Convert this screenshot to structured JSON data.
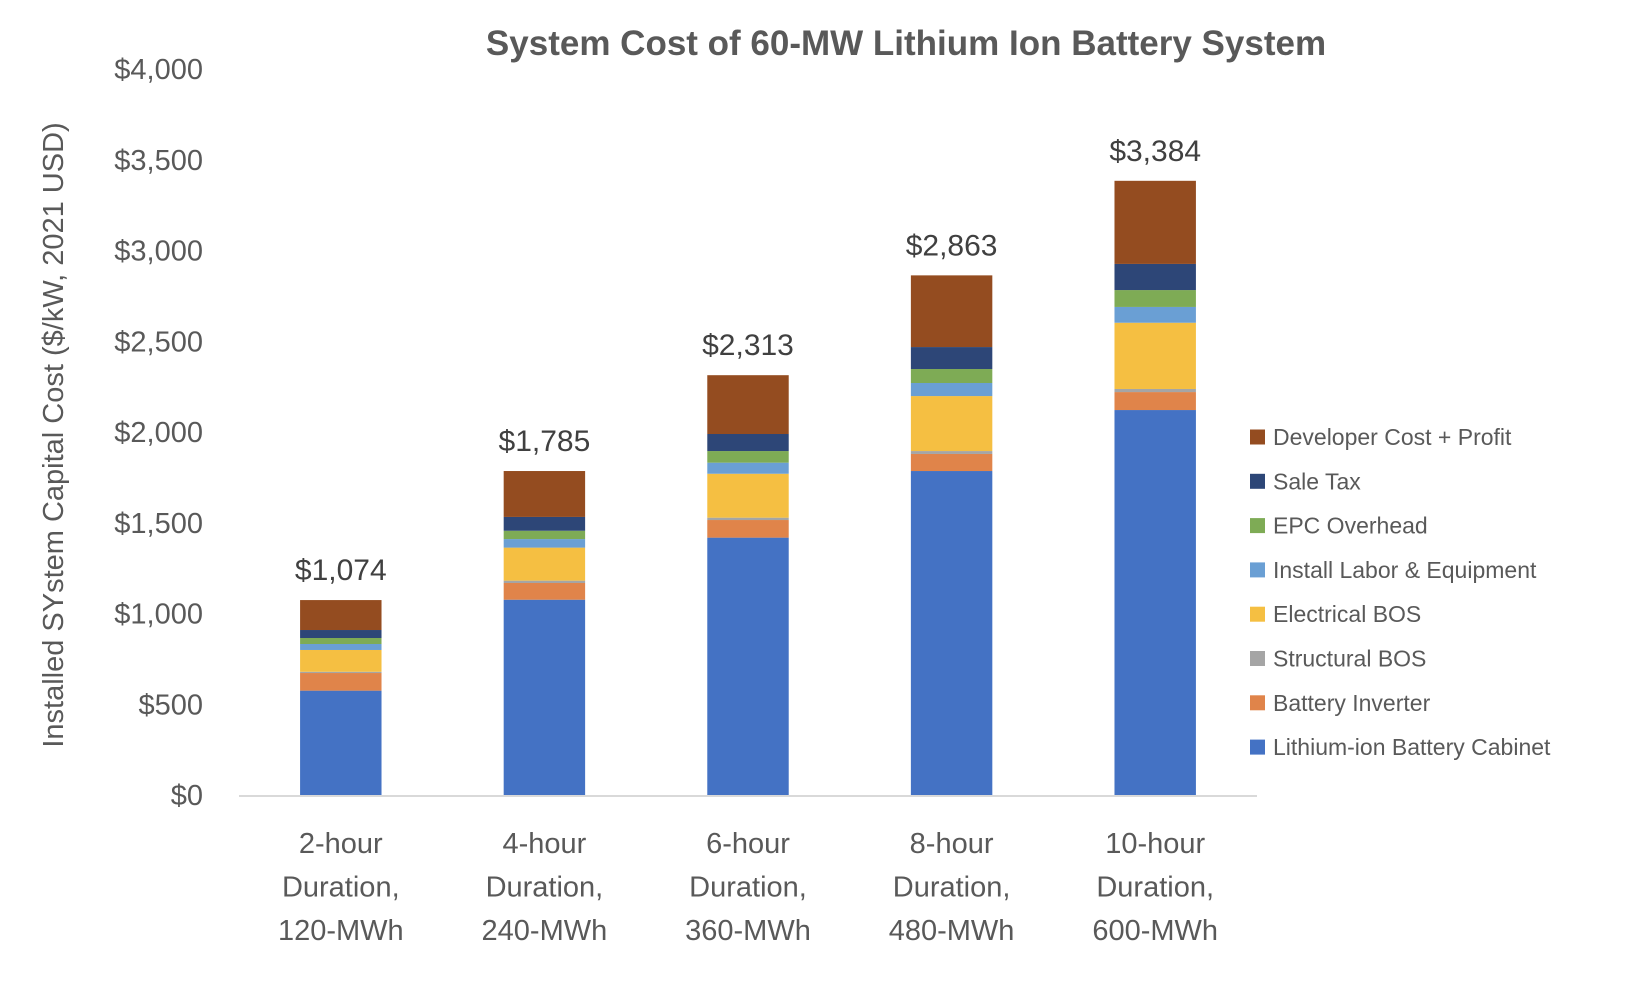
{
  "chart_data": {
    "type": "bar",
    "stacked": true,
    "title": "System Cost of 60-MW Lithium Ion Battery System",
    "xlabel": "",
    "ylabel": "Installed SYstem Capital Cost ($/kW, 2021 USD)",
    "ylim": [
      0,
      4000
    ],
    "yticks": [
      0,
      500,
      1000,
      1500,
      2000,
      2500,
      3000,
      3500,
      4000
    ],
    "ytick_labels": [
      "$0",
      "$500",
      "$1,000",
      "$1,500",
      "$2,000",
      "$2,500",
      "$3,000",
      "$3,500",
      "$4,000"
    ],
    "grid": false,
    "legend_position": "right",
    "categories": [
      [
        "2-hour",
        "Duration,",
        "120-MWh"
      ],
      [
        "4-hour",
        "Duration,",
        "240-MWh"
      ],
      [
        "6-hour",
        "Duration,",
        "360-MWh"
      ],
      [
        "8-hour",
        "Duration,",
        "480-MWh"
      ],
      [
        "10-hour",
        "Duration,",
        "600-MWh"
      ]
    ],
    "totals": [
      1074,
      1785,
      2313,
      2863,
      3384
    ],
    "total_labels": [
      "$1,074",
      "$1,785",
      "$2,313",
      "$2,863",
      "$3,384"
    ],
    "series": [
      {
        "name": "Lithium-ion Battery Cabinet",
        "color": "#4472c4",
        "values": [
          575,
          1076,
          1418,
          1785,
          2121
        ]
      },
      {
        "name": "Battery Inverter",
        "color": "#e0844a",
        "values": [
          97,
          92,
          97,
          94,
          99
        ]
      },
      {
        "name": "Structural BOS",
        "color": "#a5a5a5",
        "values": [
          7,
          13,
          13,
          16,
          17
        ]
      },
      {
        "name": "Electrical BOS",
        "color": "#f5bf42",
        "values": [
          120,
          182,
          242,
          303,
          365
        ]
      },
      {
        "name": "Install Labor & Equipment",
        "color": "#6a9fd4",
        "values": [
          33,
          47,
          61,
          72,
          87
        ]
      },
      {
        "name": "EPC Overhead",
        "color": "#7eab55",
        "values": [
          33,
          46,
          64,
          77,
          93
        ]
      },
      {
        "name": "Sale Tax",
        "color": "#2d4677",
        "values": [
          44,
          76,
          94,
          121,
          144
        ]
      },
      {
        "name": "Developer Cost + Profit",
        "color": "#944c20",
        "values": [
          165,
          253,
          324,
          395,
          458
        ]
      }
    ],
    "legend_order": [
      "Developer Cost + Profit",
      "Sale Tax",
      "EPC Overhead",
      "Install Labor & Equipment",
      "Electrical BOS",
      "Structural BOS",
      "Battery Inverter",
      "Lithium-ion Battery Cabinet"
    ],
    "colors": {
      "axis_line": "#d9d9d9",
      "text": "#595959",
      "data_label": "#404040"
    }
  }
}
